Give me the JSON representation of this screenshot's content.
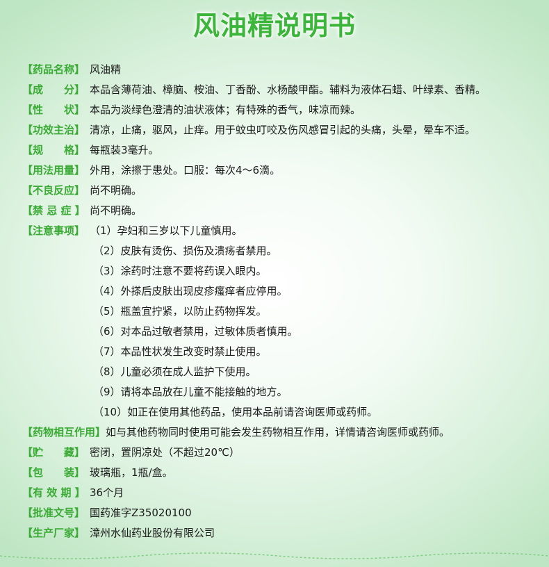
{
  "title": "风油精说明书",
  "rows": [
    {
      "label": "【药品名称】",
      "value": "风油精"
    },
    {
      "label": "【成　　分】",
      "value": "本品含薄荷油、樟脑、桉油、丁香酚、水杨酸甲酯。辅料为液体石蜡、叶绿素、香精。"
    },
    {
      "label": "【性　　状】",
      "value": "本品为淡绿色澄清的油状液体；有特殊的香气，味凉而辣。"
    },
    {
      "label": "【功效主治】",
      "value": "清凉，止痛，驱风，止痒。用于蚊虫叮咬及伤风感冒引起的头痛，头晕，晕车不适。"
    },
    {
      "label": "【规　　格】",
      "value": "每瓶装3毫升。"
    },
    {
      "label": "【用法用量】",
      "value": "外用，涂擦于患处。口服：每次4～6滴。"
    },
    {
      "label": "【不良反应】",
      "value": "尚不明确。"
    },
    {
      "label": "【禁 忌 症 】",
      "value": "尚不明确。"
    },
    {
      "label": "【注意事项】",
      "value": "（1）孕妇和三岁以下儿童慎用。"
    }
  ],
  "notes_continued": [
    "（2）皮肤有烫伤、损伤及溃疡者禁用。",
    "（3）涂药时注意不要将药误入眼内。",
    "（4）外搽后皮肤出现皮疹瘙痒者应停用。",
    "（5）瓶盖宜拧紧，以防止药物挥发。",
    "（6）对本品过敏者禁用，过敏体质者慎用。",
    "（7）本品性状发生改变时禁止使用。",
    "（8）儿童必须在成人监护下使用。",
    "（9）请将本品放在儿童不能接触的地方。",
    "（10）如正在使用其他药品，使用本品前请咨询医师或药师。"
  ],
  "rows_after": [
    {
      "label": "【药物相互作用】",
      "value": "如与其他药物同时使用可能会发生药物相互作用，详情请咨询医师或药师。"
    },
    {
      "label": "【贮　　藏】",
      "value": "密闭，置阴凉处（不超过20℃）"
    },
    {
      "label": "【包　　装】",
      "value": "玻璃瓶，1瓶/盒。"
    },
    {
      "label": "【有 效 期 】",
      "value": "36个月"
    },
    {
      "label": "【批准文号】",
      "value": "国药准字Z35020100"
    },
    {
      "label": "【生产厂家】",
      "value": "漳州水仙药业股份有限公司"
    }
  ],
  "colors": {
    "accent": "#3aaa35",
    "title": "#3cb63a",
    "text": "#1a1a1a"
  }
}
